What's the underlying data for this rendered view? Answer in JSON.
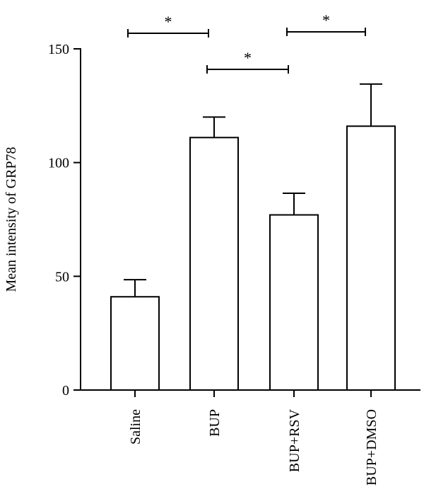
{
  "chart_data": {
    "type": "bar",
    "title": "",
    "xlabel": "",
    "ylabel": "Mean intensity of GRP78",
    "ylim": [
      0,
      150
    ],
    "yticks": [
      0,
      50,
      100,
      150
    ],
    "categories": [
      "Saline",
      "BUP",
      "BUP+RSV",
      "BUP+DMSO"
    ],
    "values": [
      41,
      111,
      77,
      116
    ],
    "error_upper": [
      48.5,
      120,
      86.5,
      134.5
    ],
    "grid": false,
    "bar_fill": "#ffffff",
    "bar_stroke": "#000000",
    "significance": [
      {
        "from": 0,
        "to": 1,
        "label": "*"
      },
      {
        "from": 1,
        "to": 2,
        "label": "*"
      },
      {
        "from": 2,
        "to": 3,
        "label": "*"
      }
    ]
  }
}
